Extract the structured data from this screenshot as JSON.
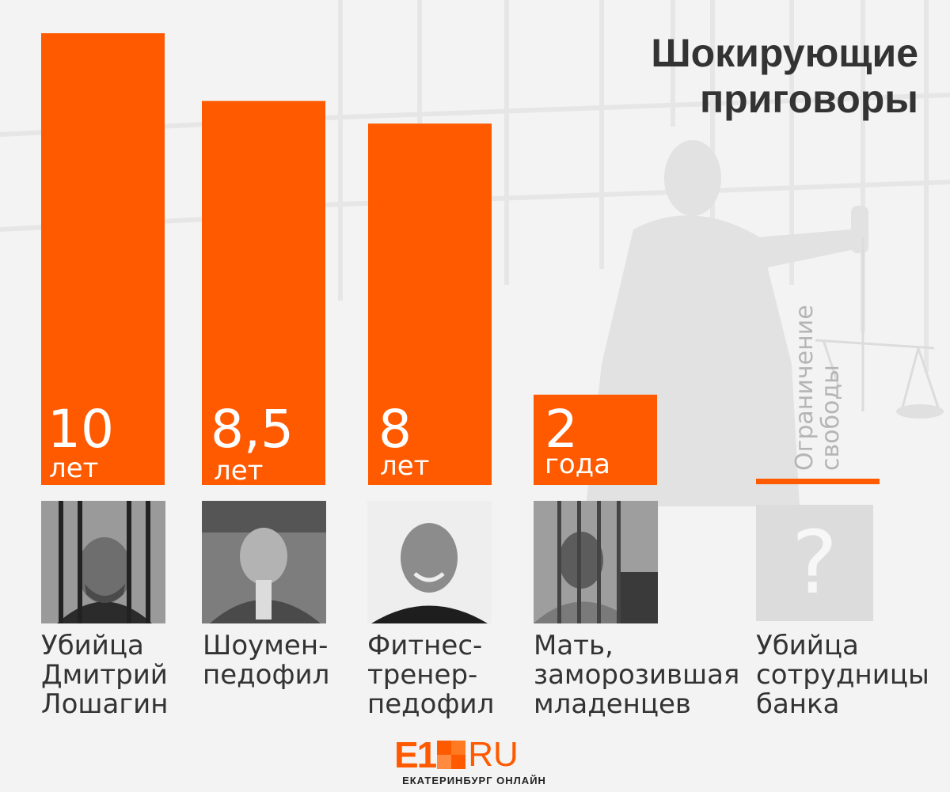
{
  "title": [
    "Шокирующие",
    "приговоры"
  ],
  "colors": {
    "accent": "#ff5a00",
    "text": "#333333",
    "muted": "#b5b5b5",
    "background": "#f3f3f3"
  },
  "chart_data": {
    "type": "bar",
    "title": "Шокирующие приговоры",
    "categories": [
      "Убийца Дмитрий Лошагин",
      "Шоумен-педофил",
      "Фитнес-тренер-педофил",
      "Мать, заморозившая младенцев",
      "Убийца сотрудницы банка"
    ],
    "values": [
      10,
      8.5,
      8,
      2,
      null
    ],
    "value_labels": [
      "10",
      "8,5",
      "8",
      "2",
      ""
    ],
    "unit_labels": [
      "лет",
      "лет",
      "лет",
      "года",
      ""
    ],
    "ylim": [
      0,
      10
    ],
    "grid": false,
    "legend": "none",
    "special": {
      "label": [
        "Ограничение",
        "свободы"
      ]
    }
  },
  "photos": [
    {
      "icon": "person-photo-loshagin"
    },
    {
      "icon": "person-photo-showman"
    },
    {
      "icon": "person-photo-fitness-trainer"
    },
    {
      "icon": "person-photo-mother"
    },
    {
      "icon": "question-mark-icon",
      "glyph": "?"
    }
  ],
  "captions": [
    [
      "Убийца",
      "Дмитрий",
      "Лошагин"
    ],
    [
      "Шоумен-",
      "педофил"
    ],
    [
      "Фитнес-",
      "тренер-",
      "педофил"
    ],
    [
      "Мать,",
      "заморозившая",
      "младенцев"
    ],
    [
      "Убийца",
      "сотрудницы",
      "банка"
    ]
  ],
  "logo": {
    "brand": "E1",
    "domain": "RU",
    "subtitle": "ЕКАТЕРИНБУРГ ОНЛАЙН"
  }
}
